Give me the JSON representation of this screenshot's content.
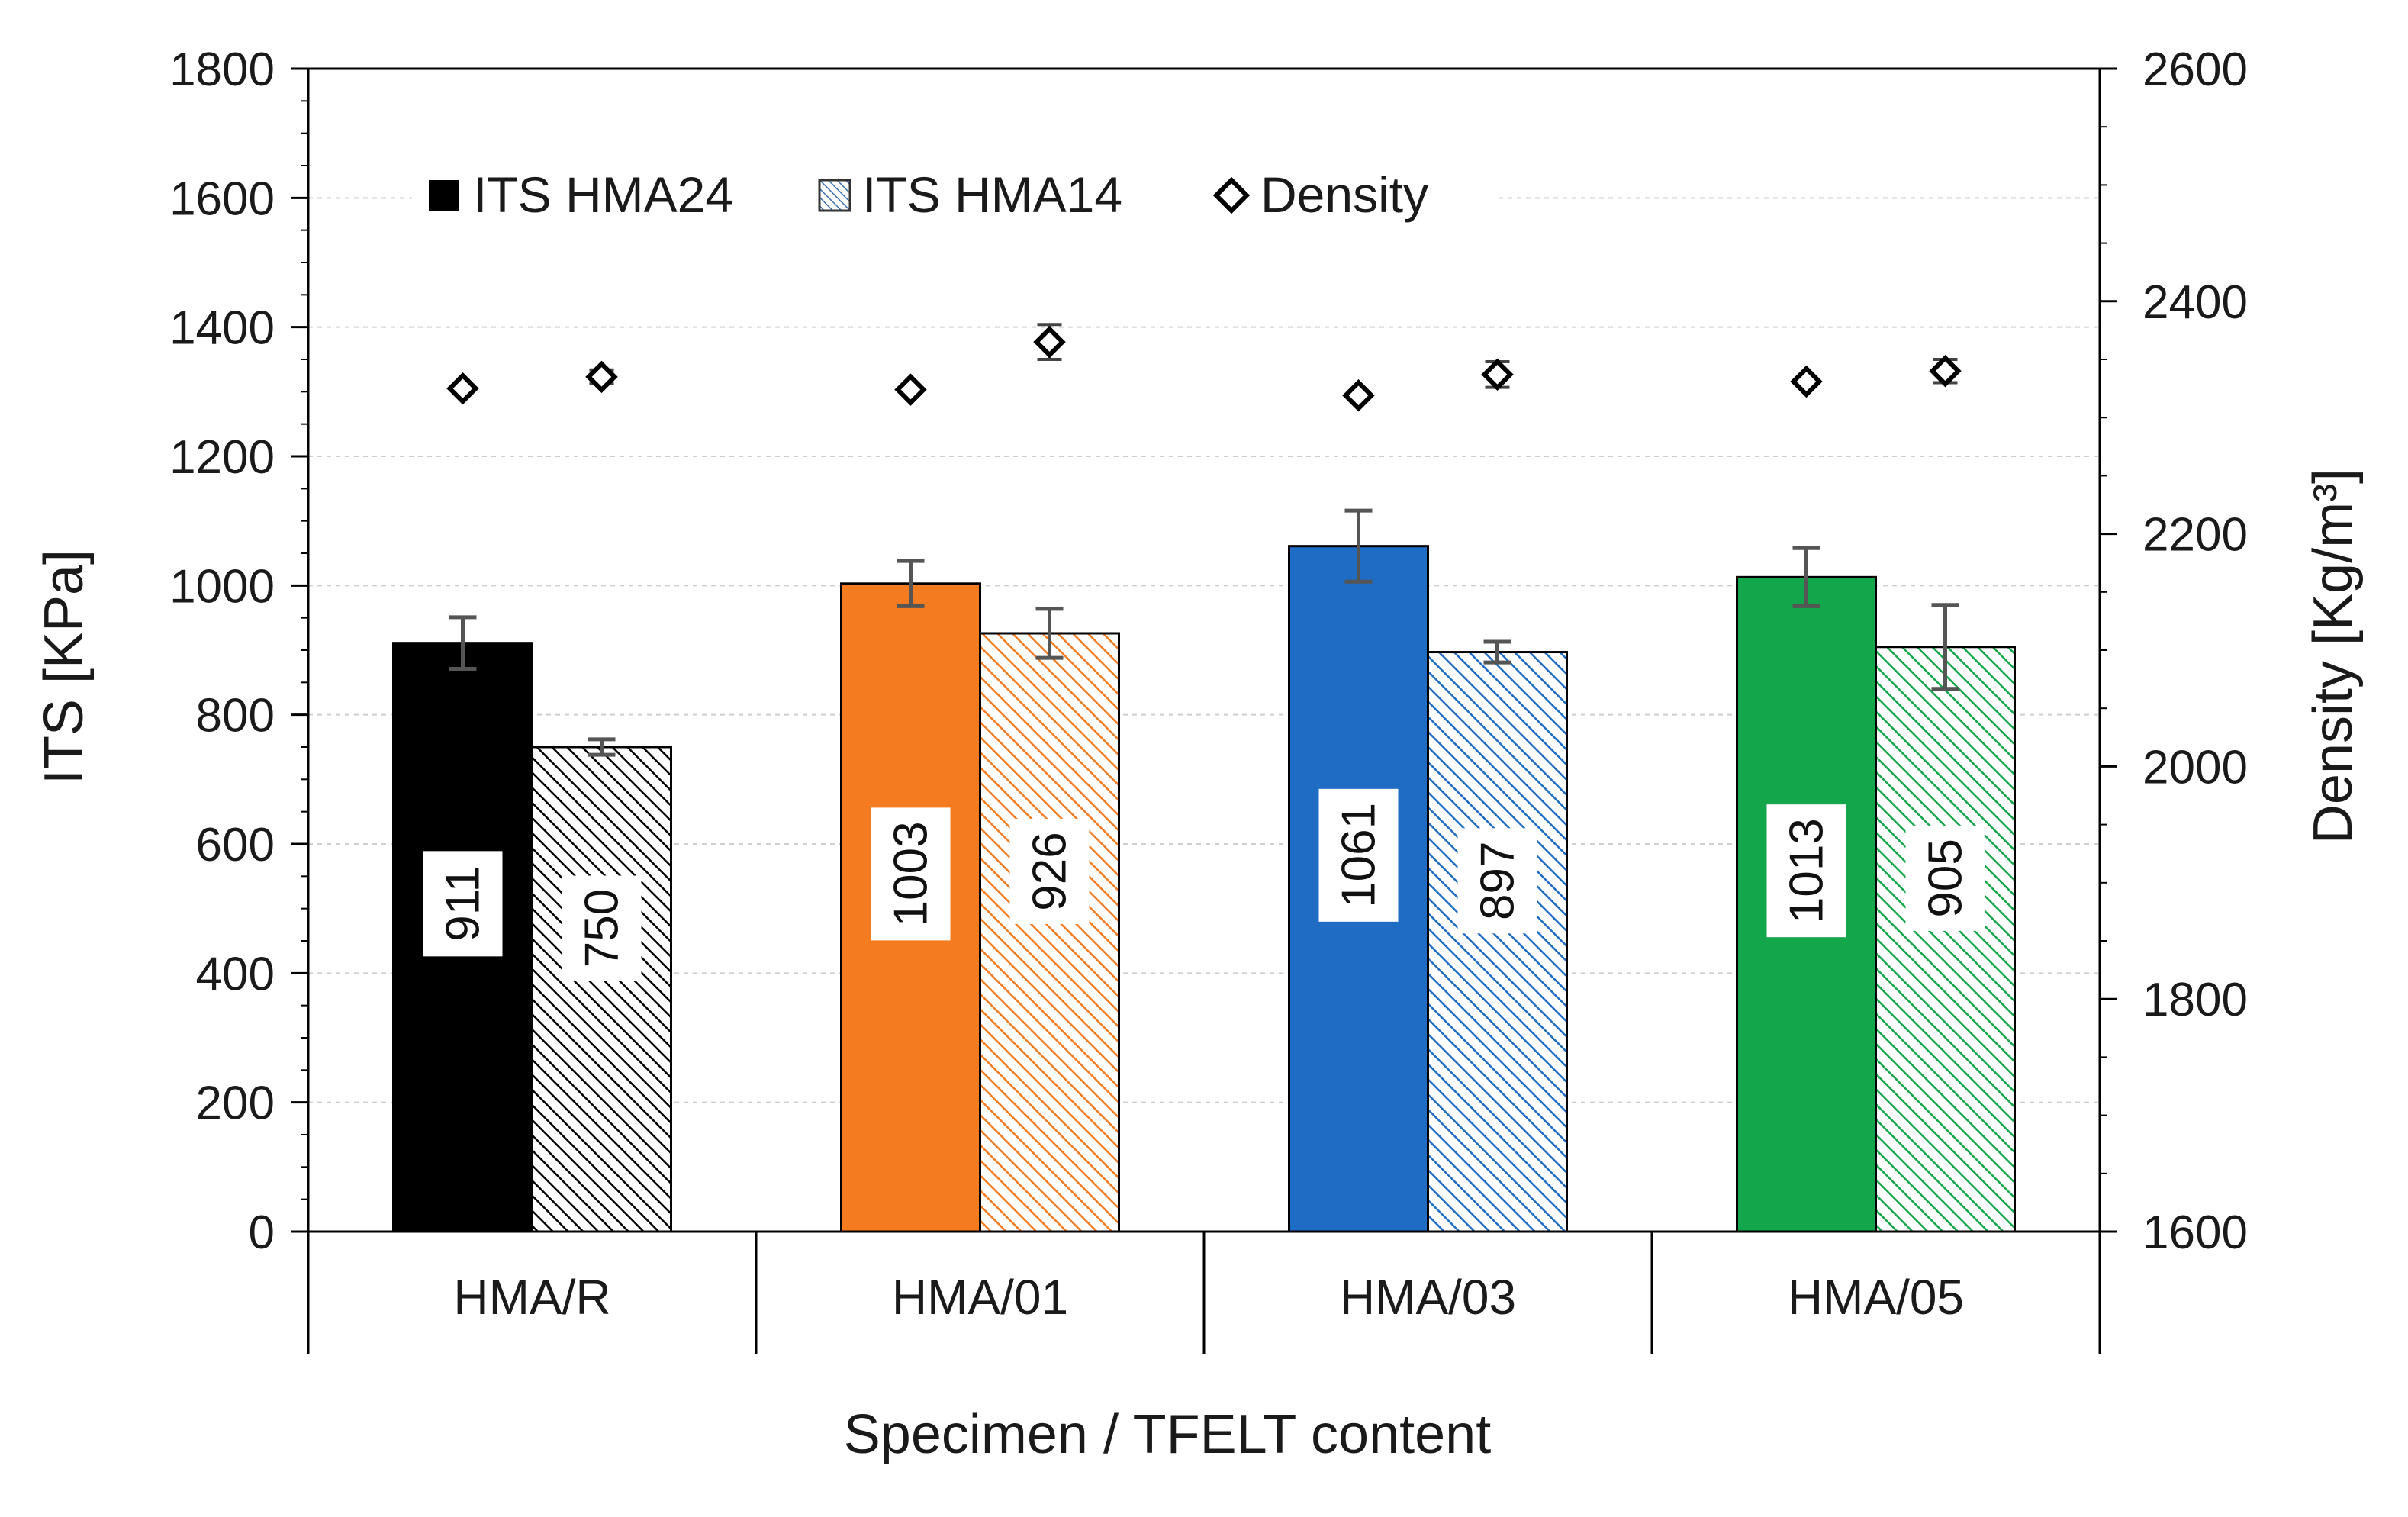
{
  "chart_data": {
    "type": "bar",
    "xlabel": "Specimen / TFELT content",
    "ylabel": "ITS [KPa]",
    "y2label": "Density [Kg/m³]",
    "ylim": [
      0,
      1800
    ],
    "yticks": [
      0,
      200,
      400,
      600,
      800,
      1000,
      1200,
      1400,
      1600,
      1800
    ],
    "y2lim": [
      1600,
      2600
    ],
    "y2ticks": [
      1600,
      1800,
      2000,
      2200,
      2400,
      2600
    ],
    "grid": true,
    "legend_position": "top-left",
    "categories": [
      "HMA/R",
      "HMA/01",
      "HMA/03",
      "HMA/05"
    ],
    "colors": [
      "#000000",
      "#f47b20",
      "#1f6cc4",
      "#14a64a"
    ],
    "series": [
      {
        "name": "ITS HMA24",
        "pattern": "solid",
        "values": [
          911,
          1003,
          1061,
          1013
        ],
        "errors": [
          40,
          35,
          55,
          45
        ],
        "labels": [
          "911",
          "1003",
          "1061",
          "1013"
        ]
      },
      {
        "name": "ITS HMA14",
        "pattern": "hatched",
        "values": [
          750,
          926,
          897,
          905
        ],
        "errors": [
          12,
          38,
          16,
          65
        ],
        "labels": [
          "750",
          "926",
          "897",
          "905"
        ]
      },
      {
        "name": "Density",
        "axis": "secondary",
        "marker": "diamond",
        "values_hma24": [
          2325,
          2324,
          2319,
          2331
        ],
        "errors_hma24": [
          0,
          0,
          0,
          0
        ],
        "values_hma14": [
          2335,
          2365,
          2337,
          2340
        ],
        "errors_hma14": [
          6,
          15,
          11,
          10
        ]
      }
    ]
  }
}
